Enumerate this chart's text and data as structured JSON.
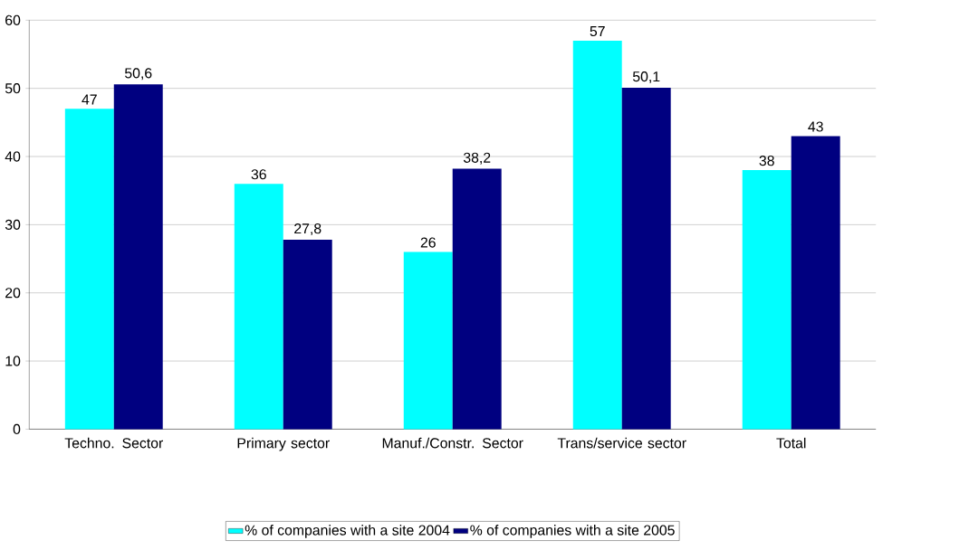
{
  "chart_data": {
    "type": "bar",
    "categories": [
      "Techno. Sector",
      "Primary sector",
      "Manuf./Constr. Sector",
      "Trans/service sector",
      "Total"
    ],
    "series": [
      {
        "name": "% of companies with a site 2004",
        "color": "#00ffff",
        "values": [
          47,
          36,
          26,
          57,
          38
        ],
        "value_labels": [
          "47",
          "36",
          "26",
          "57",
          "38"
        ]
      },
      {
        "name": "% of companies with a site 2005",
        "color": "#000080",
        "values": [
          50.6,
          27.8,
          38.2,
          50.1,
          43
        ],
        "value_labels": [
          "50,6",
          "27,8",
          "38,2",
          "50,1",
          "43"
        ]
      }
    ],
    "ylim": [
      0,
      60
    ],
    "yticks": [
      0,
      10,
      20,
      30,
      40,
      50,
      60
    ],
    "grid": "y",
    "legend": "bottom"
  }
}
